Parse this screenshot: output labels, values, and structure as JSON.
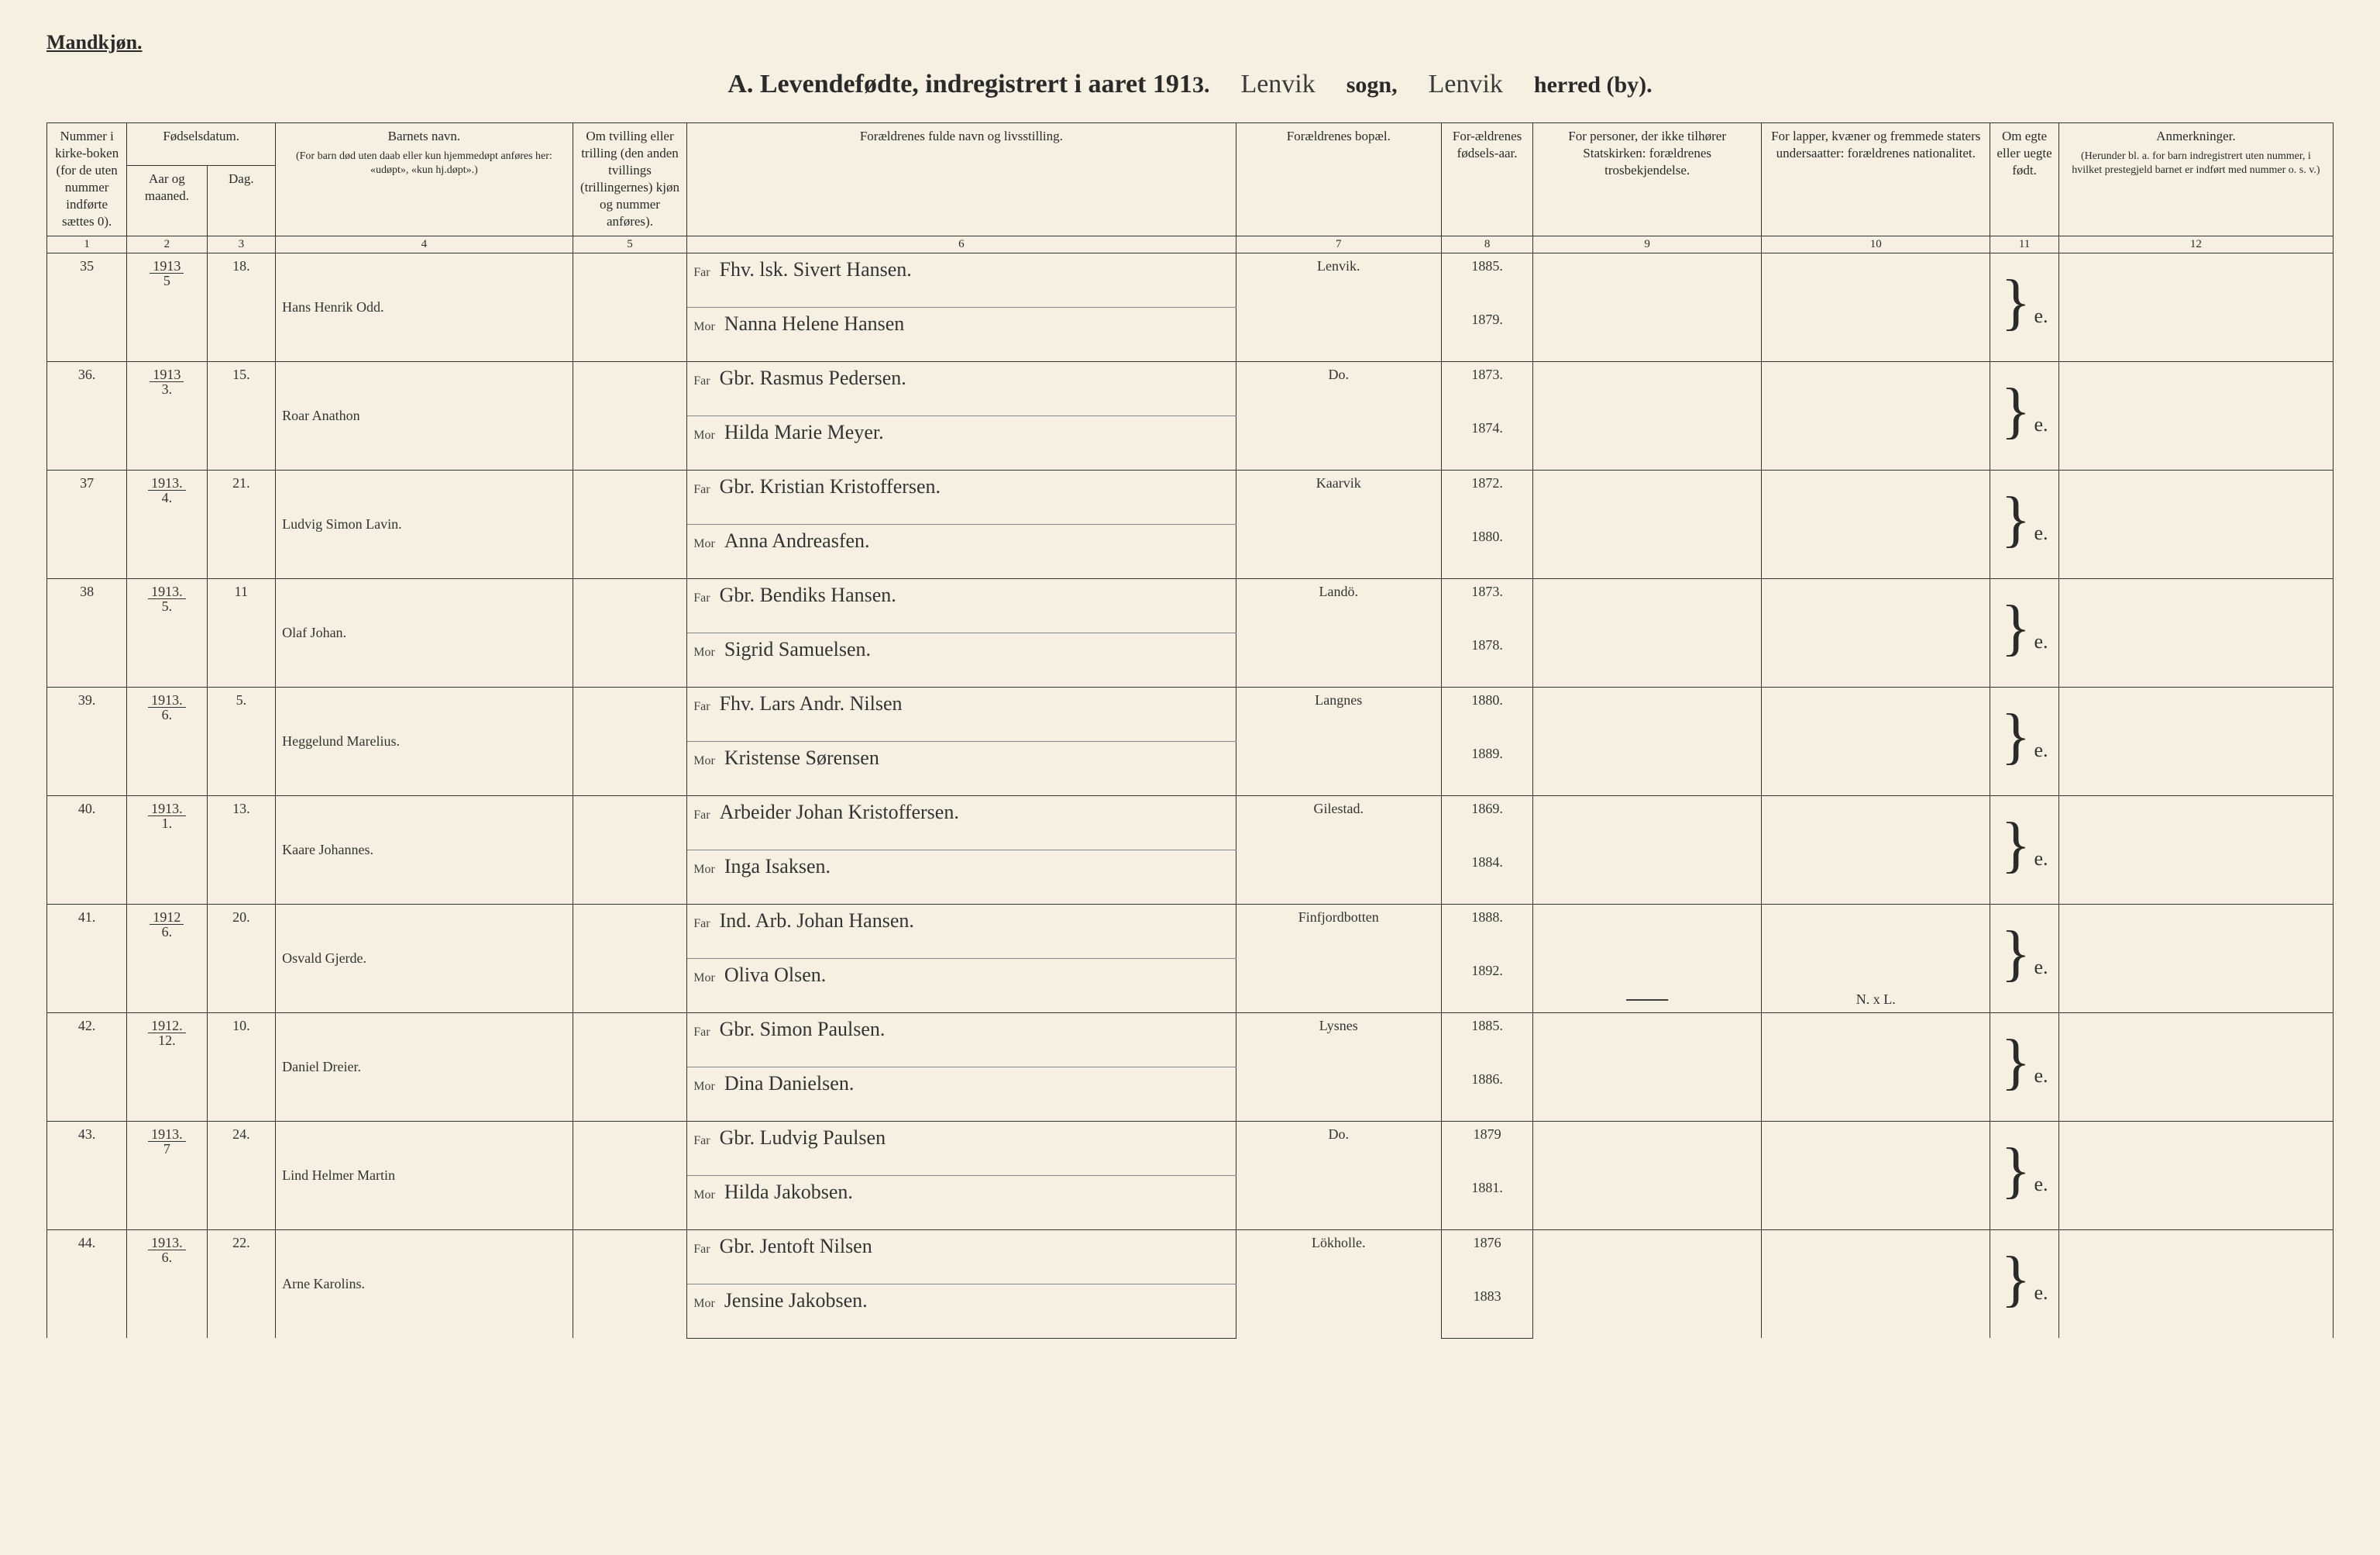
{
  "page": {
    "gender_label": "Mandkjøn.",
    "title_prefix": "A.  Levendefødte, indregistrert i aaret 191",
    "title_year_digit": "3.",
    "sogn_value": "Lenvik",
    "sogn_label": "sogn,",
    "herred_value": "Lenvik",
    "herred_label": "herred (by).",
    "background_color": "#f5f0e1",
    "text_color": "#2a2a2a",
    "border_color": "#333333"
  },
  "headers": {
    "col1": "Nummer i kirke-boken (for de uten nummer indførte sættes 0).",
    "col2_group": "Fødselsdatum.",
    "col2": "Aar og maaned.",
    "col3": "Dag.",
    "col4": "Barnets navn.",
    "col4_sub": "(For barn død uten daab eller kun hjemmedøpt anføres her: «udøpt», «kun hj.døpt».)",
    "col5": "Om tvilling eller trilling (den anden tvillings (trillingernes) kjøn og nummer anføres).",
    "col6": "Forældrenes fulde navn og livsstilling.",
    "col7": "Forældrenes bopæl.",
    "col8": "For-ældrenes fødsels-aar.",
    "col9": "For personer, der ikke tilhører Statskirken: forældrenes trosbekjendelse.",
    "col10": "For lapper, kvæner og fremmede staters undersaatter: forældrenes nationalitet.",
    "col11": "Om egte eller uegte født.",
    "col12": "Anmerkninger.",
    "col12_sub": "(Herunder bl. a. for barn indregistrert uten nummer, i hvilket prestegjeld barnet er indført med nummer o. s. v.)"
  },
  "colnums": [
    "1",
    "2",
    "3",
    "4",
    "5",
    "6",
    "7",
    "8",
    "9",
    "10",
    "11",
    "12"
  ],
  "labels": {
    "far": "Far",
    "mor": "Mor"
  },
  "rows": [
    {
      "num": "35",
      "year_top": "1913",
      "year_bot": "5",
      "day": "18.",
      "child": "Hans Henrik Odd.",
      "far": "Fhv. lsk. Sivert Hansen.",
      "mor": "Nanna Helene Hansen",
      "bopael": "Lenvik.",
      "far_year": "1885.",
      "mor_year": "1879.",
      "col9": "",
      "col10": "",
      "col11": "e.",
      "col12": ""
    },
    {
      "num": "36.",
      "year_top": "1913",
      "year_bot": "3.",
      "day": "15.",
      "child": "Roar Anathon",
      "far": "Gbr. Rasmus Pedersen.",
      "mor": "Hilda Marie Meyer.",
      "bopael": "Do.",
      "far_year": "1873.",
      "mor_year": "1874.",
      "col9": "",
      "col10": "",
      "col11": "e.",
      "col12": ""
    },
    {
      "num": "37",
      "year_top": "1913.",
      "year_bot": "4.",
      "day": "21.",
      "child": "Ludvig Simon Lavin.",
      "far": "Gbr. Kristian Kristoffersen.",
      "mor": "Anna Andreasfen.",
      "bopael": "Kaarvik",
      "far_year": "1872.",
      "mor_year": "1880.",
      "col9": "",
      "col10": "",
      "col11": "e.",
      "col12": ""
    },
    {
      "num": "38",
      "year_top": "1913.",
      "year_bot": "5.",
      "day": "11",
      "child": "Olaf Johan.",
      "far": "Gbr. Bendiks Hansen.",
      "mor": "Sigrid Samuelsen.",
      "bopael": "Landö.",
      "far_year": "1873.",
      "mor_year": "1878.",
      "col9": "",
      "col10": "",
      "col11": "e.",
      "col12": ""
    },
    {
      "num": "39.",
      "year_top": "1913.",
      "year_bot": "6.",
      "day": "5.",
      "child": "Heggelund Marelius.",
      "far": "Fhv. Lars Andr. Nilsen",
      "mor": "Kristense Sørensen",
      "bopael": "Langnes",
      "far_year": "1880.",
      "mor_year": "1889.",
      "col9": "",
      "col10": "",
      "col11": "e.",
      "col12": ""
    },
    {
      "num": "40.",
      "year_top": "1913.",
      "year_bot": "1.",
      "day": "13.",
      "child": "Kaare Johannes.",
      "far": "Arbeider Johan Kristoffersen.",
      "mor": "Inga Isaksen.",
      "bopael": "Gilestad.",
      "far_year": "1869.",
      "mor_year": "1884.",
      "col9": "",
      "col10": "",
      "col11": "e.",
      "col12": ""
    },
    {
      "num": "41.",
      "year_top": "1912",
      "year_bot": "6.",
      "day": "20.",
      "child": "Osvald Gjerde.",
      "far": "Ind. Arb. Johan Hansen.",
      "mor": "Oliva Olsen.",
      "bopael": "Finfjordbotten",
      "far_year": "1888.",
      "mor_year": "1892.",
      "col9": "",
      "col9_strike": true,
      "col10": "N. x L.",
      "col11": "e.",
      "col12": ""
    },
    {
      "num": "42.",
      "year_top": "1912.",
      "year_bot": "12.",
      "day": "10.",
      "child": "Daniel Dreier.",
      "far": "Gbr. Simon Paulsen.",
      "mor": "Dina Danielsen.",
      "bopael": "Lysnes",
      "far_year": "1885.",
      "mor_year": "1886.",
      "col9": "",
      "col10": "",
      "col11": "e.",
      "col12": ""
    },
    {
      "num": "43.",
      "year_top": "1913.",
      "year_bot": "7",
      "day": "24.",
      "child": "Lind Helmer Martin",
      "far": "Gbr. Ludvig Paulsen",
      "mor": "Hilda Jakobsen.",
      "bopael": "Do.",
      "far_year": "1879",
      "mor_year": "1881.",
      "col9": "",
      "col10": "",
      "col11": "e.",
      "col12": ""
    },
    {
      "num": "44.",
      "year_top": "1913.",
      "year_bot": "6.",
      "day": "22.",
      "child": "Arne Karolins.",
      "far": "Gbr. Jentoft Nilsen",
      "mor": "Jensine Jakobsen.",
      "bopael": "Lökholle.",
      "far_year": "1876",
      "mor_year": "1883",
      "col9": "",
      "col10": "",
      "col11": "e.",
      "col12": ""
    }
  ]
}
